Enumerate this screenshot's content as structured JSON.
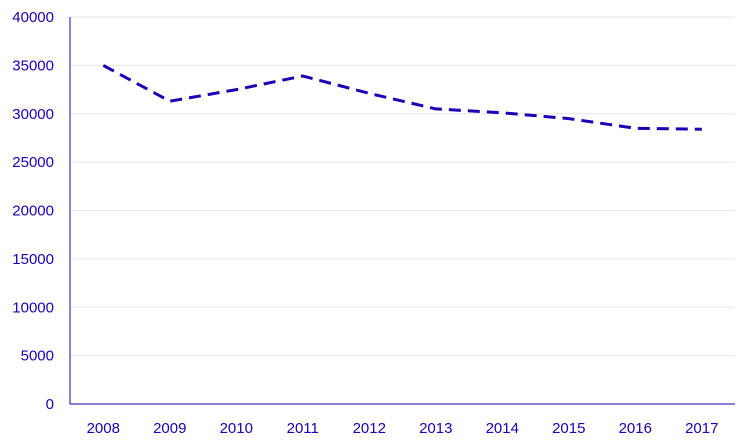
{
  "chart_data": {
    "type": "line",
    "title": "",
    "xlabel": "",
    "ylabel": "",
    "categories": [
      "2008",
      "2009",
      "2010",
      "2011",
      "2012",
      "2013",
      "2014",
      "2015",
      "2016",
      "2017"
    ],
    "series": [
      {
        "values": [
          35000,
          31300,
          32500,
          33900,
          32100,
          30500,
          30100,
          29500,
          28500,
          28400
        ]
      }
    ],
    "ylim": [
      0,
      40000
    ],
    "yticks": [
      0,
      5000,
      10000,
      15000,
      20000,
      25000,
      30000,
      35000,
      40000
    ],
    "grid": true,
    "line_style": "dashed",
    "colors": {
      "series": "#1a00b4",
      "axis": "#1a00b4",
      "text": "#1a00b4",
      "grid": "#e6e6e6"
    }
  }
}
